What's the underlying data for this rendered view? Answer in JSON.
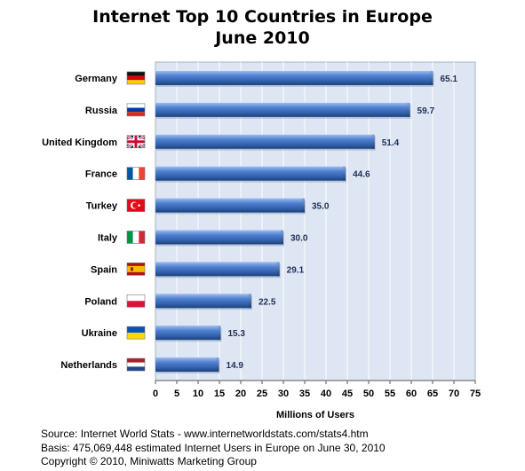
{
  "title_line1": "Internet Top 10 Countries in Europe",
  "title_line2": "June 2010",
  "footer": {
    "source": "Source: Internet World Stats  -  www.internetworldstats.com/stats4.htm",
    "basis": "Basis: 475,069,448 estimated Internet  Users in Europe on June 30, 2010",
    "copyright": "Copyright © 2010, Miniwatts Marketing Group"
  },
  "chart_data": {
    "type": "bar",
    "orientation": "horizontal",
    "title": "Internet Top 10 Countries in Europe June 2010",
    "xlabel": "Millions of Users",
    "ylabel": "",
    "xlim": [
      0,
      75
    ],
    "xticks": [
      0,
      5,
      10,
      15,
      20,
      25,
      30,
      35,
      40,
      45,
      50,
      55,
      60,
      65,
      70,
      75
    ],
    "grid": true,
    "categories": [
      "Germany",
      "Russia",
      "United Kingdom",
      "France",
      "Turkey",
      "Italy",
      "Spain",
      "Poland",
      "Ukraine",
      "Netherlands"
    ],
    "values": [
      65.1,
      59.7,
      51.4,
      44.6,
      35.0,
      30.0,
      29.1,
      22.5,
      15.3,
      14.9
    ],
    "value_labels": [
      "65.1",
      "59.7",
      "51.4",
      "44.6",
      "35.0",
      "30.0",
      "29.1",
      "22.5",
      "15.3",
      "14.9"
    ],
    "flag_icons": [
      "germany-flag-icon",
      "russia-flag-icon",
      "united-kingdom-flag-icon",
      "france-flag-icon",
      "turkey-flag-icon",
      "italy-flag-icon",
      "spain-flag-icon",
      "poland-flag-icon",
      "ukraine-flag-icon",
      "netherlands-flag-icon"
    ],
    "colors": {
      "bar": "#2f5ea8",
      "bar_light": "#6f9be0",
      "bar_dark": "#1d3f7a",
      "plot_bg": "#dde6f2",
      "grid": "#ffffff"
    }
  }
}
